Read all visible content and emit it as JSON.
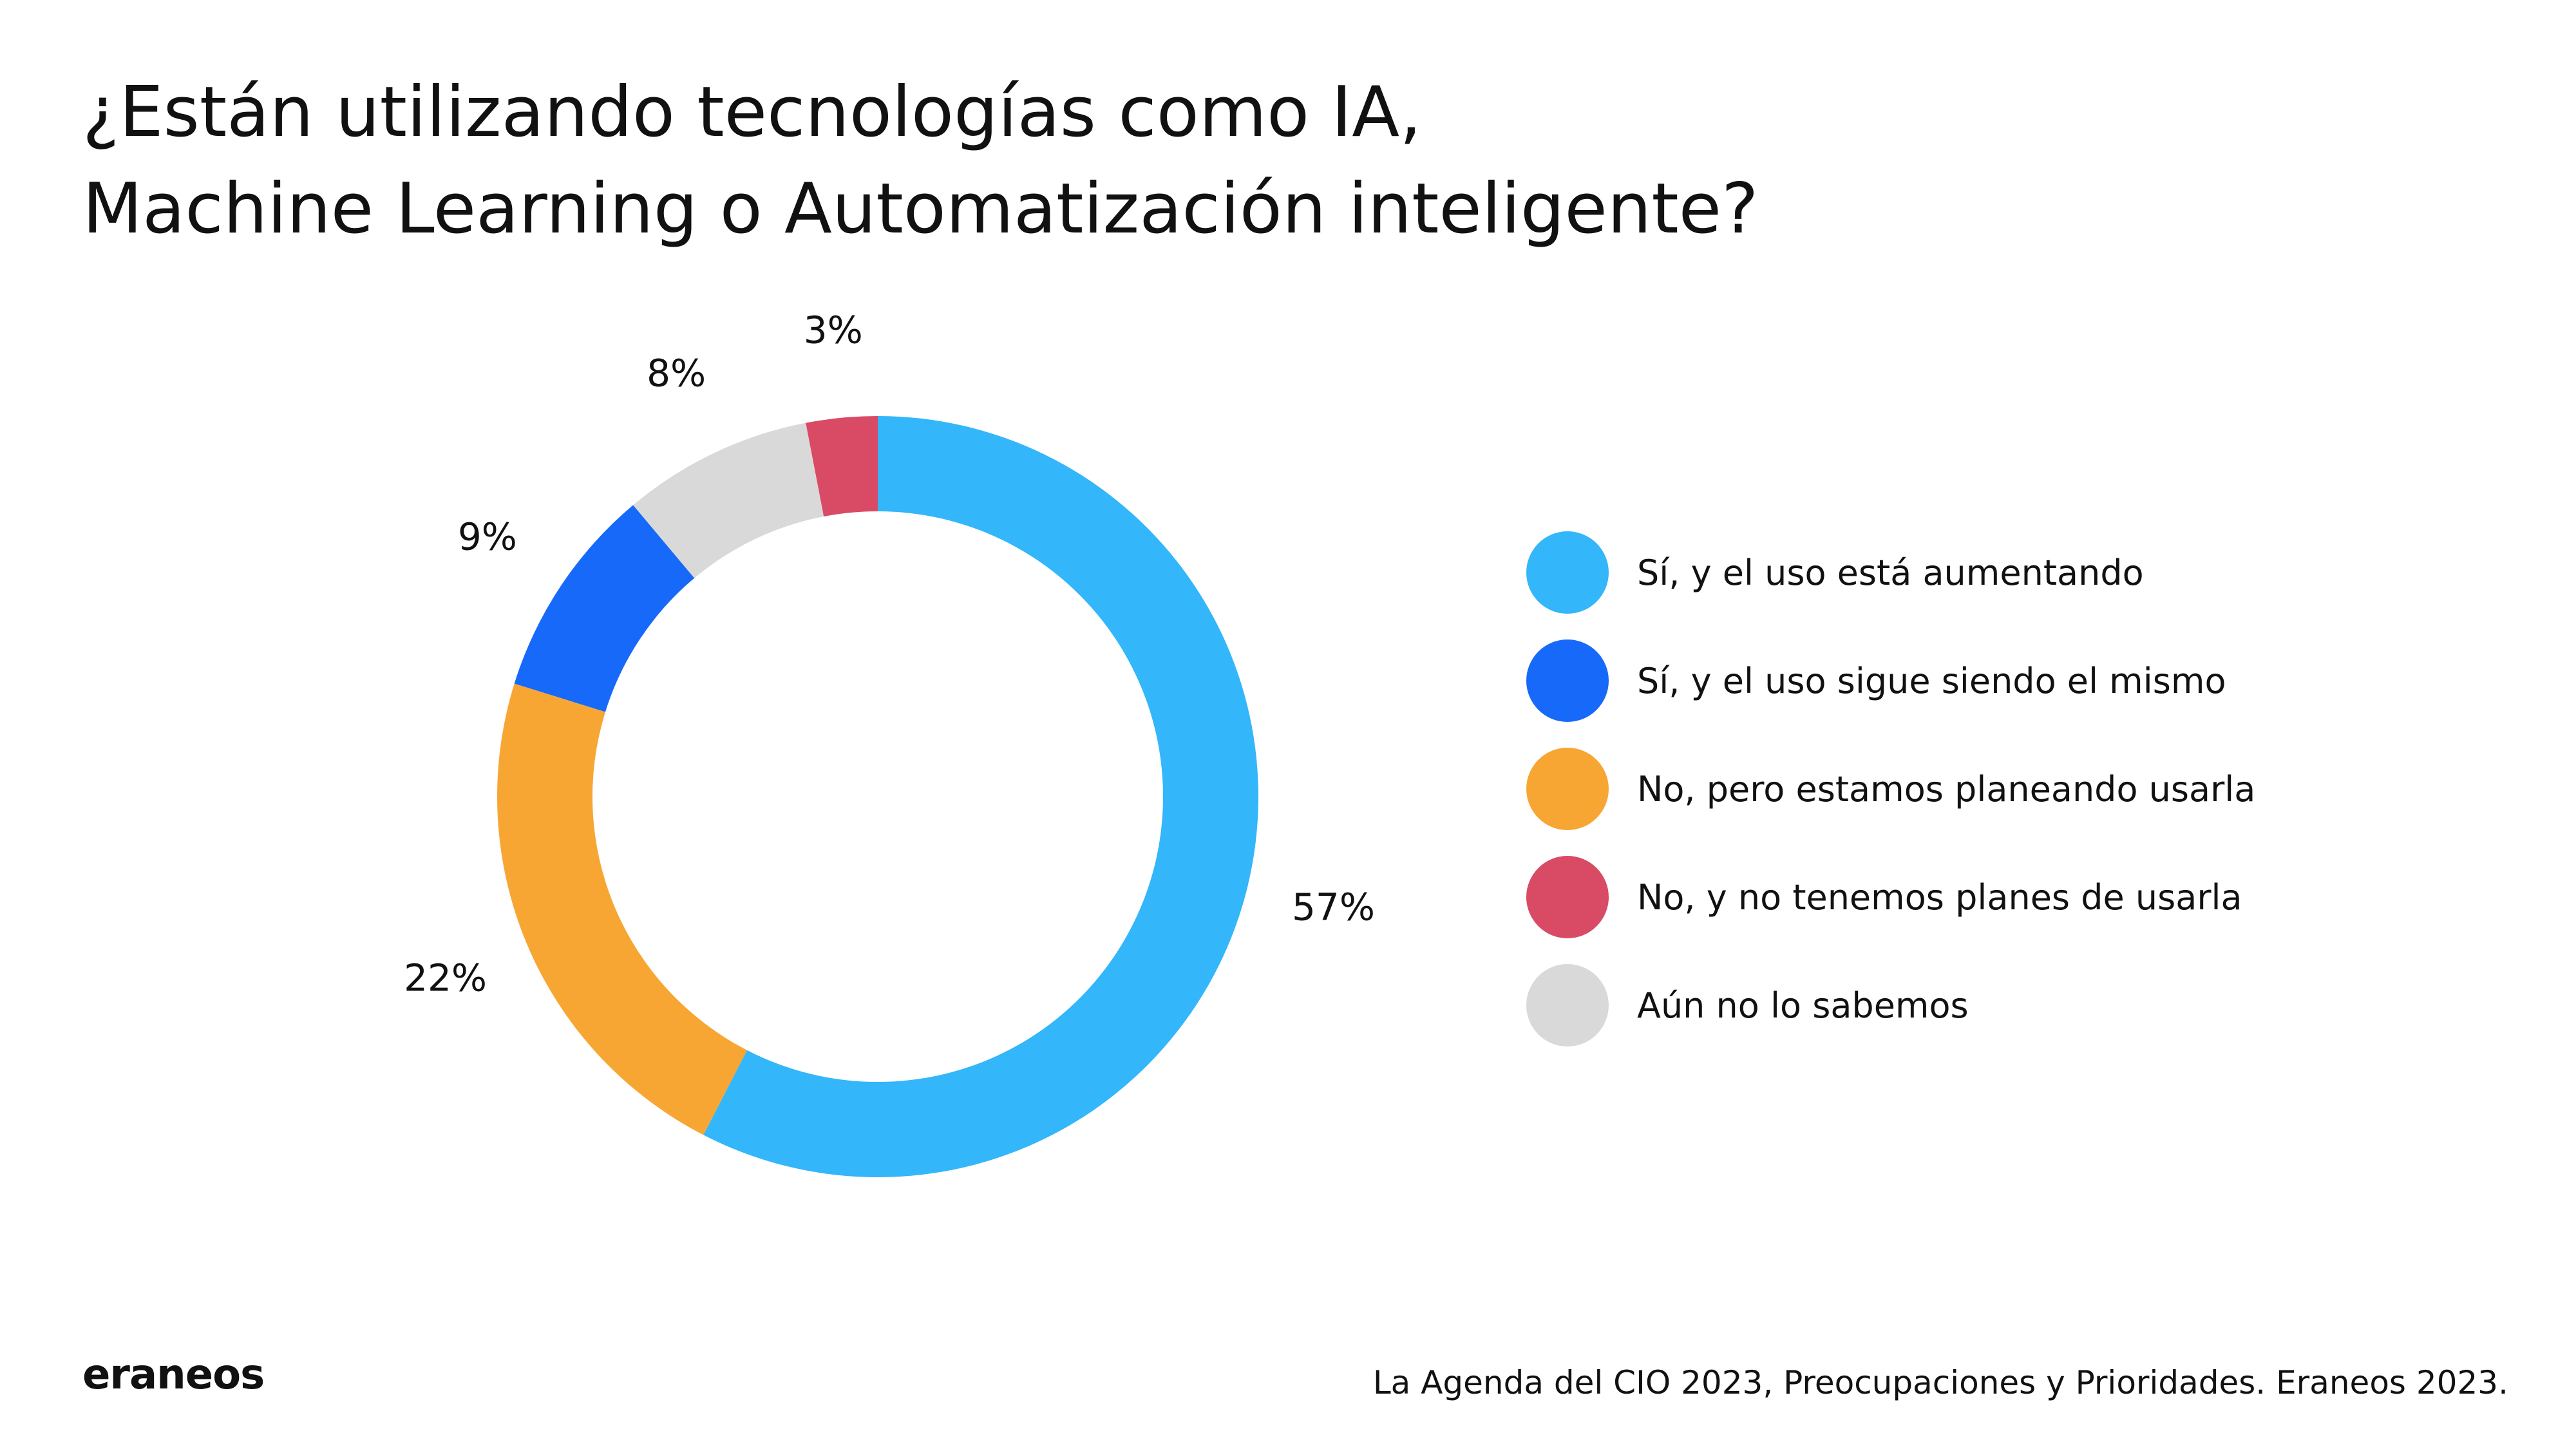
{
  "title_lines": [
    "¿Están utilizando tecnologías como IA,",
    "Machine Learning o Automatización inteligente?"
  ],
  "chart_data": {
    "type": "pie",
    "variant": "donut",
    "categories": [
      "Sí, y el uso está aumentando",
      "No, pero estamos planeando usarla",
      "Sí, y el uso sigue siendo el mismo",
      "Aún no lo sabemos",
      "No, y no tenemos planes de usarla"
    ],
    "values": [
      57,
      22,
      9,
      8,
      3
    ],
    "value_labels": [
      "57%",
      "22%",
      "9%",
      "8%",
      "3%"
    ],
    "colors": [
      "#33b6fa",
      "#f8a633",
      "#1769fa",
      "#d9d9d9",
      "#d94b65"
    ],
    "legend_position": "right"
  },
  "legend": [
    {
      "label": "Sí, y el uso está aumentando",
      "color": "#33b6fa"
    },
    {
      "label": "Sí, y el uso sigue siendo el mismo",
      "color": "#1769fa"
    },
    {
      "label": "No, pero estamos planeando usarla",
      "color": "#f8a633"
    },
    {
      "label": "No, y no tenemos planes de usarla",
      "color": "#d94b65"
    },
    {
      "label": "Aún no lo sabemos",
      "color": "#d9d9d9"
    }
  ],
  "logo_text": "eraneos",
  "source": "La Agenda del CIO 2023, Preocupaciones y Prioridades. Eraneos 2023."
}
